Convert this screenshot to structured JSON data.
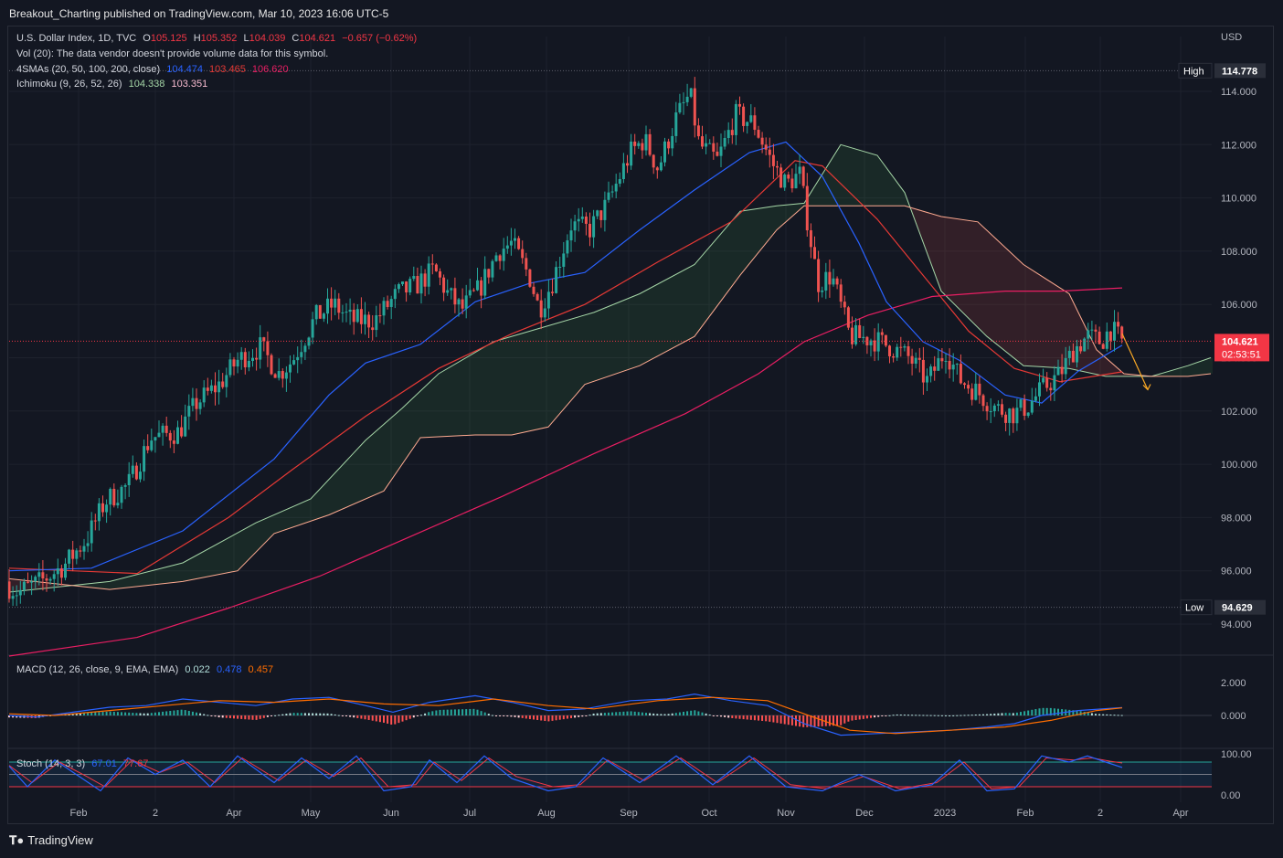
{
  "header": {
    "published": "Breakout_Charting published on TradingView.com, Mar 10, 2023 16:06 UTC-5"
  },
  "legend": {
    "symbol": "U.S. Dollar Index, 1D, TVC",
    "o_label": "O",
    "o": "105.125",
    "h_label": "H",
    "h": "105.352",
    "l_label": "L",
    "l": "104.039",
    "c_label": "C",
    "c": "104.621",
    "change": "−0.657 (−0.62%)",
    "vol": "Vol (20): The data vendor doesn't provide volume data for this symbol.",
    "smas_label": "4SMAs (20, 50, 100, 200, close)",
    "sma20": "104.474",
    "sma50": "103.465",
    "sma100": "106.620",
    "ichimoku_label": "Ichimoku (9, 26, 52, 26)",
    "ichi1": "104.338",
    "ichi2": "103.351",
    "macd_label": "MACD (12, 26, close, 9, EMA, EMA)",
    "macd1": "0.022",
    "macd2": "0.478",
    "macd3": "0.457",
    "stoch_label": "Stoch (14, 3, 3)",
    "stoch1": "67.01",
    "stoch2": "77.67"
  },
  "footer": {
    "brand": "TradingView"
  },
  "colors": {
    "bg": "#131722",
    "up": "#26a69a",
    "down": "#ef5350",
    "sma20": "#2962ff",
    "sma50": "#e53935",
    "sma200": "#e91e63",
    "cloud_up": "#a5d6a7",
    "cloud_down": "#ffab91",
    "macd": "#2962ff",
    "signal": "#ff6d00",
    "stoch_k": "#2962ff",
    "stoch_d": "#f23645"
  },
  "chart_data": {
    "type": "candlestick",
    "currency": "USD",
    "ylim": [
      93.0,
      115.5
    ],
    "yticks": [
      "94.000",
      "96.000",
      "98.000",
      "100.000",
      "102.000",
      "104.000",
      "106.000",
      "108.000",
      "110.000",
      "112.000",
      "114.000"
    ],
    "yticks_values": [
      94,
      96,
      98,
      100,
      102,
      104,
      106,
      108,
      110,
      112,
      114
    ],
    "high_label": "High",
    "high": "114.778",
    "high_value": 114.778,
    "low_label": "Low",
    "low": "94.629",
    "low_value": 94.629,
    "last_price": "104.621",
    "last_value": 104.621,
    "countdown": "02:53:51",
    "xticks": [
      "Feb",
      "2",
      "Apr",
      "May",
      "Jun",
      "Jul",
      "Aug",
      "Sep",
      "Oct",
      "Nov",
      "Dec",
      "2023",
      "Feb",
      "2",
      "Apr"
    ],
    "macd_ticks": [
      "2.000",
      "0.000"
    ],
    "macd_tick_values": [
      2,
      0
    ],
    "stoch_ticks": [
      "100.00",
      "0.00"
    ],
    "stoch_tick_values": [
      100,
      0
    ],
    "close_anchors": [
      [
        0,
        95.6
      ],
      [
        20,
        95.2
      ],
      [
        45,
        95.6
      ],
      [
        70,
        96.2
      ],
      [
        95,
        97.2
      ],
      [
        115,
        98.6
      ],
      [
        140,
        99.2
      ],
      [
        165,
        101.0
      ],
      [
        195,
        101.2
      ],
      [
        215,
        102.3
      ],
      [
        240,
        103.0
      ],
      [
        260,
        103.9
      ],
      [
        285,
        104.4
      ],
      [
        305,
        103.4
      ],
      [
        320,
        103.9
      ],
      [
        345,
        105.5
      ],
      [
        365,
        106.0
      ],
      [
        385,
        105.4
      ],
      [
        410,
        105.4
      ],
      [
        435,
        106.4
      ],
      [
        455,
        106.7
      ],
      [
        475,
        107.3
      ],
      [
        490,
        106.4
      ],
      [
        505,
        105.8
      ],
      [
        525,
        106.6
      ],
      [
        545,
        108.0
      ],
      [
        560,
        108.3
      ],
      [
        580,
        107.0
      ],
      [
        590,
        105.8
      ],
      [
        605,
        106.9
      ],
      [
        625,
        109.0
      ],
      [
        645,
        108.8
      ],
      [
        665,
        109.8
      ],
      [
        690,
        111.7
      ],
      [
        705,
        112.2
      ],
      [
        720,
        111.1
      ],
      [
        740,
        113.0
      ],
      [
        755,
        113.9
      ],
      [
        765,
        112.0
      ],
      [
        785,
        111.4
      ],
      [
        805,
        113.1
      ],
      [
        825,
        112.8
      ],
      [
        845,
        111.3
      ],
      [
        860,
        110.5
      ],
      [
        875,
        110.9
      ],
      [
        895,
        106.8
      ],
      [
        910,
        107.1
      ],
      [
        930,
        104.8
      ],
      [
        955,
        104.7
      ],
      [
        975,
        104.4
      ],
      [
        995,
        104.0
      ],
      [
        1015,
        103.1
      ],
      [
        1035,
        104.3
      ],
      [
        1050,
        103.2
      ],
      [
        1070,
        102.7
      ],
      [
        1090,
        102.1
      ],
      [
        1110,
        101.9
      ],
      [
        1125,
        102.2
      ],
      [
        1140,
        102.8
      ],
      [
        1160,
        103.4
      ],
      [
        1175,
        104.3
      ],
      [
        1190,
        104.8
      ],
      [
        1205,
        104.6
      ],
      [
        1215,
        105.1
      ],
      [
        1228,
        104.6
      ]
    ],
    "sma20_pts": [
      [
        10,
        96.0
      ],
      [
        100,
        96.1
      ],
      [
        200,
        97.5
      ],
      [
        300,
        100.2
      ],
      [
        360,
        102.6
      ],
      [
        400,
        103.8
      ],
      [
        460,
        104.5
      ],
      [
        520,
        106.1
      ],
      [
        580,
        106.8
      ],
      [
        640,
        107.2
      ],
      [
        700,
        108.8
      ],
      [
        760,
        110.3
      ],
      [
        820,
        111.7
      ],
      [
        860,
        112.1
      ],
      [
        900,
        110.8
      ],
      [
        940,
        108.3
      ],
      [
        970,
        106.1
      ],
      [
        1010,
        104.6
      ],
      [
        1050,
        103.9
      ],
      [
        1100,
        102.6
      ],
      [
        1140,
        102.3
      ],
      [
        1180,
        103.5
      ],
      [
        1228,
        104.47
      ]
    ],
    "sma50_pts": [
      [
        10,
        96.1
      ],
      [
        150,
        95.9
      ],
      [
        250,
        98.0
      ],
      [
        320,
        99.8
      ],
      [
        400,
        101.8
      ],
      [
        480,
        103.6
      ],
      [
        560,
        104.9
      ],
      [
        640,
        106.0
      ],
      [
        720,
        107.6
      ],
      [
        800,
        109.1
      ],
      [
        870,
        111.4
      ],
      [
        900,
        111.2
      ],
      [
        960,
        109.2
      ],
      [
        1010,
        107.1
      ],
      [
        1060,
        105.0
      ],
      [
        1110,
        103.6
      ],
      [
        1160,
        103.1
      ],
      [
        1228,
        103.47
      ]
    ],
    "sma200_pts": [
      [
        10,
        92.8
      ],
      [
        150,
        93.5
      ],
      [
        250,
        94.6
      ],
      [
        350,
        95.8
      ],
      [
        450,
        97.3
      ],
      [
        550,
        98.8
      ],
      [
        650,
        100.4
      ],
      [
        750,
        101.9
      ],
      [
        830,
        103.4
      ],
      [
        880,
        104.6
      ],
      [
        950,
        105.6
      ],
      [
        1020,
        106.3
      ],
      [
        1100,
        106.5
      ],
      [
        1160,
        106.5
      ],
      [
        1228,
        106.62
      ]
    ],
    "span_a_pts": [
      [
        10,
        95.2
      ],
      [
        120,
        95.6
      ],
      [
        200,
        96.3
      ],
      [
        280,
        97.8
      ],
      [
        340,
        98.7
      ],
      [
        400,
        100.9
      ],
      [
        440,
        102.1
      ],
      [
        480,
        103.4
      ],
      [
        540,
        104.6
      ],
      [
        600,
        105.2
      ],
      [
        650,
        105.7
      ],
      [
        700,
        106.4
      ],
      [
        760,
        107.5
      ],
      [
        810,
        109.5
      ],
      [
        850,
        109.7
      ],
      [
        880,
        109.8
      ],
      [
        920,
        112.0
      ],
      [
        960,
        111.6
      ],
      [
        990,
        110.2
      ],
      [
        1030,
        106.5
      ],
      [
        1080,
        104.8
      ],
      [
        1120,
        103.7
      ],
      [
        1170,
        103.6
      ],
      [
        1210,
        103.3
      ],
      [
        1260,
        103.3
      ],
      [
        1300,
        103.7
      ],
      [
        1325,
        104.0
      ]
    ],
    "span_b_pts": [
      [
        10,
        95.7
      ],
      [
        120,
        95.3
      ],
      [
        200,
        95.6
      ],
      [
        260,
        96.0
      ],
      [
        300,
        97.4
      ],
      [
        360,
        98.1
      ],
      [
        420,
        99.0
      ],
      [
        460,
        101.0
      ],
      [
        520,
        101.1
      ],
      [
        560,
        101.1
      ],
      [
        600,
        101.4
      ],
      [
        640,
        103.0
      ],
      [
        700,
        103.7
      ],
      [
        760,
        104.8
      ],
      [
        810,
        107.1
      ],
      [
        850,
        108.8
      ],
      [
        880,
        109.7
      ],
      [
        940,
        109.7
      ],
      [
        990,
        109.7
      ],
      [
        1030,
        109.3
      ],
      [
        1070,
        109.1
      ],
      [
        1120,
        107.5
      ],
      [
        1170,
        106.4
      ],
      [
        1200,
        104.3
      ],
      [
        1230,
        103.4
      ],
      [
        1260,
        103.3
      ],
      [
        1300,
        103.3
      ],
      [
        1325,
        103.4
      ]
    ],
    "macd_pts": [
      [
        10,
        0.0
      ],
      [
        40,
        -0.1
      ],
      [
        80,
        0.2
      ],
      [
        120,
        0.5
      ],
      [
        160,
        0.6
      ],
      [
        200,
        1.0
      ],
      [
        240,
        0.8
      ],
      [
        280,
        0.6
      ],
      [
        320,
        1.0
      ],
      [
        360,
        1.1
      ],
      [
        400,
        0.6
      ],
      [
        430,
        0.2
      ],
      [
        470,
        0.8
      ],
      [
        520,
        1.2
      ],
      [
        560,
        0.8
      ],
      [
        600,
        0.3
      ],
      [
        640,
        0.4
      ],
      [
        690,
        0.9
      ],
      [
        730,
        1.0
      ],
      [
        760,
        1.3
      ],
      [
        800,
        0.9
      ],
      [
        840,
        0.6
      ],
      [
        880,
        -0.5
      ],
      [
        920,
        -1.2
      ],
      [
        960,
        -1.1
      ],
      [
        1000,
        -1.0
      ],
      [
        1040,
        -0.9
      ],
      [
        1080,
        -0.7
      ],
      [
        1110,
        -0.5
      ],
      [
        1140,
        0.0
      ],
      [
        1180,
        0.3
      ],
      [
        1228,
        0.48
      ]
    ],
    "signal_pts": [
      [
        10,
        0.1
      ],
      [
        60,
        0.0
      ],
      [
        120,
        0.3
      ],
      [
        180,
        0.6
      ],
      [
        240,
        0.9
      ],
      [
        300,
        0.8
      ],
      [
        360,
        1.0
      ],
      [
        420,
        0.7
      ],
      [
        480,
        0.6
      ],
      [
        540,
        1.0
      ],
      [
        600,
        0.6
      ],
      [
        650,
        0.4
      ],
      [
        720,
        0.9
      ],
      [
        780,
        1.1
      ],
      [
        840,
        0.9
      ],
      [
        880,
        0.1
      ],
      [
        930,
        -0.9
      ],
      [
        980,
        -1.1
      ],
      [
        1040,
        -0.9
      ],
      [
        1100,
        -0.7
      ],
      [
        1150,
        -0.3
      ],
      [
        1200,
        0.3
      ],
      [
        1228,
        0.46
      ]
    ],
    "stoch_k_pts": [
      [
        10,
        70
      ],
      [
        30,
        20
      ],
      [
        60,
        85
      ],
      [
        90,
        40
      ],
      [
        110,
        10
      ],
      [
        140,
        90
      ],
      [
        170,
        50
      ],
      [
        200,
        85
      ],
      [
        230,
        20
      ],
      [
        260,
        95
      ],
      [
        300,
        30
      ],
      [
        330,
        90
      ],
      [
        360,
        40
      ],
      [
        390,
        95
      ],
      [
        420,
        10
      ],
      [
        450,
        20
      ],
      [
        470,
        85
      ],
      [
        500,
        30
      ],
      [
        530,
        95
      ],
      [
        560,
        40
      ],
      [
        600,
        10
      ],
      [
        630,
        20
      ],
      [
        660,
        90
      ],
      [
        700,
        30
      ],
      [
        740,
        95
      ],
      [
        780,
        25
      ],
      [
        820,
        95
      ],
      [
        860,
        20
      ],
      [
        900,
        10
      ],
      [
        940,
        50
      ],
      [
        980,
        10
      ],
      [
        1020,
        25
      ],
      [
        1050,
        85
      ],
      [
        1080,
        10
      ],
      [
        1110,
        15
      ],
      [
        1140,
        95
      ],
      [
        1170,
        80
      ],
      [
        1190,
        95
      ],
      [
        1210,
        80
      ],
      [
        1228,
        67
      ]
    ],
    "stoch_d_pts": [
      [
        10,
        72
      ],
      [
        35,
        30
      ],
      [
        65,
        80
      ],
      [
        95,
        45
      ],
      [
        115,
        20
      ],
      [
        145,
        85
      ],
      [
        175,
        55
      ],
      [
        205,
        80
      ],
      [
        235,
        30
      ],
      [
        265,
        90
      ],
      [
        305,
        35
      ],
      [
        335,
        85
      ],
      [
        365,
        45
      ],
      [
        395,
        90
      ],
      [
        425,
        20
      ],
      [
        455,
        25
      ],
      [
        475,
        80
      ],
      [
        505,
        35
      ],
      [
        535,
        90
      ],
      [
        565,
        45
      ],
      [
        605,
        20
      ],
      [
        635,
        25
      ],
      [
        665,
        85
      ],
      [
        705,
        35
      ],
      [
        745,
        90
      ],
      [
        785,
        30
      ],
      [
        825,
        90
      ],
      [
        865,
        25
      ],
      [
        905,
        15
      ],
      [
        945,
        45
      ],
      [
        985,
        15
      ],
      [
        1025,
        30
      ],
      [
        1055,
        80
      ],
      [
        1085,
        15
      ],
      [
        1115,
        20
      ],
      [
        1145,
        90
      ],
      [
        1175,
        85
      ],
      [
        1195,
        90
      ],
      [
        1215,
        82
      ],
      [
        1228,
        77.67
      ]
    ]
  }
}
